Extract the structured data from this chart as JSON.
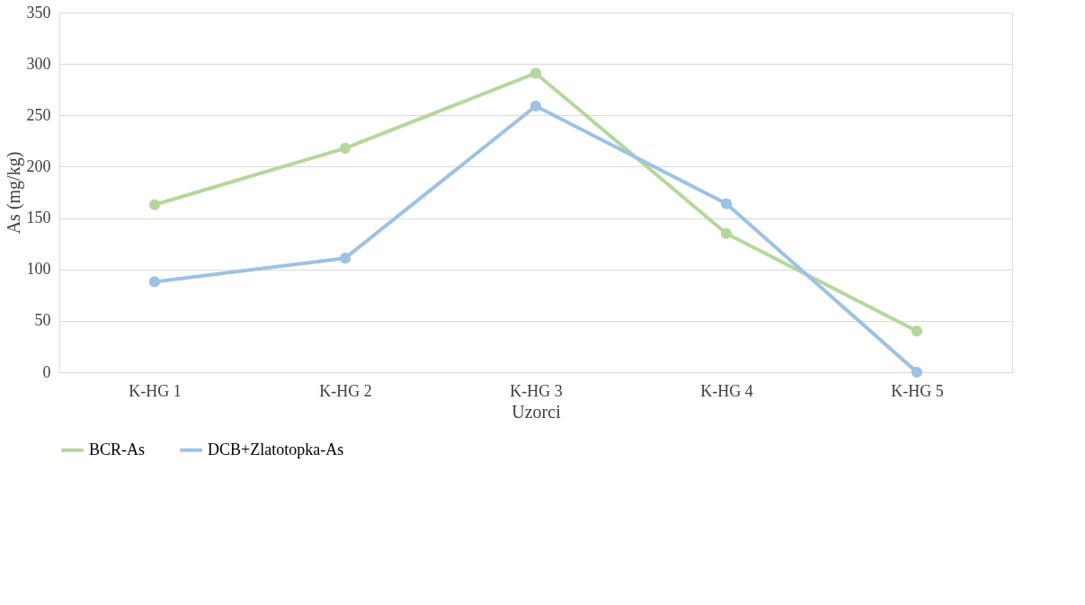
{
  "chart_data": {
    "type": "line",
    "xlabel": "Uzorci",
    "ylabel": "As (mg/kg)",
    "categories": [
      "K-HG 1",
      "K-HG 2",
      "K-HG 3",
      "K-HG 4",
      "K-HG 5"
    ],
    "series": [
      {
        "name": "BCR-As",
        "color": "#b4d89c",
        "values": [
          163,
          218,
          291,
          135,
          40
        ]
      },
      {
        "name": "DCB+Zlatotopka-As",
        "color": "#9cc2e5",
        "values": [
          88,
          111,
          259,
          164,
          0
        ]
      }
    ],
    "ylim": [
      0,
      350
    ],
    "yticks": [
      0,
      50,
      100,
      150,
      200,
      250,
      300,
      350
    ],
    "grid": "y",
    "legend": "bottom",
    "marker": "circle",
    "line_style": "solid"
  }
}
